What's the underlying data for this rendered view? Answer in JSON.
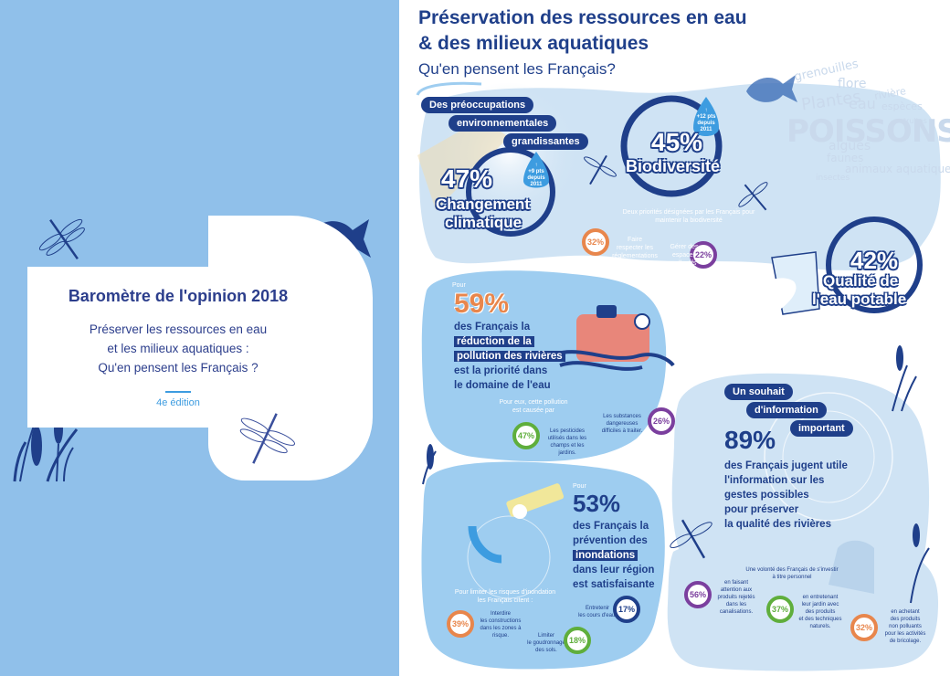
{
  "cover": {
    "title": "Baromètre de l'opinion 2018",
    "subtitle_lines": [
      "Préserver les ressources en eau",
      "et les milieux aquatiques :",
      "Qu'en pensent les Français ?"
    ],
    "edition": "4e édition"
  },
  "infographic": {
    "title_line1": "Préservation des ressources en eau",
    "title_line2": "& des milieux aquatiques",
    "subtitle": "Qu'en pensent les Français?",
    "preoccupations": {
      "pill_lines": [
        "Des préoccupations",
        "environnementales",
        "grandissantes"
      ],
      "climate_pct": "47%",
      "climate_label_lines": [
        "Changement",
        "climatique"
      ],
      "climate_drop": [
        "↑",
        "+9 pts",
        "depuis",
        "2011"
      ],
      "biodiv_pct": "45%",
      "biodiv_label": "Biodiversité",
      "biodiv_drop": [
        "↑",
        "+12 pts",
        "depuis",
        "2011"
      ],
      "water_pct": "42%",
      "water_label_lines": [
        "Qualité de",
        "l'eau potable"
      ]
    },
    "word_cloud": [
      "grenouilles",
      "flore",
      "rivière",
      "espèces",
      "eau",
      "Plantes",
      "truites",
      "POISSONS",
      "algues",
      "faunes",
      "animaux aquatiques",
      "insectes"
    ],
    "biodiv_priorities": {
      "caption_lines": [
        "Deux priorités désignées par les Français pour",
        "maintenir la biodiversité"
      ],
      "item1_pct": "32%",
      "item1_text": [
        "Faire",
        "respecter les",
        "réglementations"
      ],
      "item2_pct": "22%",
      "item2_text": [
        "Gérer des",
        "espaces collectifs",
        "sans pesticides"
      ]
    },
    "pollution": {
      "pour": "Pour",
      "pct": "59%",
      "lines": [
        "des Français la",
        "réduction de la",
        "pollution des rivières",
        "est la priorité dans",
        "le domaine de l'eau"
      ],
      "caption_lines": [
        "Pour eux, cette pollution",
        "est causée par"
      ],
      "item1_pct": "47%",
      "item1_text": [
        "Les pesticides",
        "utilisés dans les",
        "champs et les",
        "jardins."
      ],
      "item2_pct": "26%",
      "item2_text": [
        "Les substances",
        "dangereuses",
        "difficiles à traiter."
      ]
    },
    "information": {
      "pill_lines": [
        "Un souhait",
        "d'information",
        "important"
      ],
      "pct": "89%",
      "lines": [
        "des Français jugent utile",
        "l'information sur les",
        "gestes possibles",
        "pour préserver",
        "la qualité des rivières"
      ],
      "caption_lines": [
        "Une volonté des Français de s'investir",
        "à titre personnel"
      ],
      "item1_pct": "56%",
      "item1_text": [
        "en faisant",
        "attention aux",
        "produits rejetés",
        "dans les",
        "canalisations."
      ],
      "item2_pct": "37%",
      "item2_text": [
        "en entretenant",
        "leur jardin avec",
        "des produits",
        "et des techniques",
        "naturels."
      ],
      "item3_pct": "32%",
      "item3_text": [
        "en achetant",
        "des produits",
        "non polluants",
        "pour les activités",
        "de bricolage."
      ]
    },
    "floods": {
      "pour": "Pour",
      "pct": "53%",
      "lines": [
        "des Français la",
        "prévention des",
        "inondations",
        "dans leur région",
        "est satisfaisante"
      ],
      "caption_lines": [
        "Pour limiter les risques d'inondation",
        "les Français citent :"
      ],
      "item1_pct": "39%",
      "item1_text": [
        "Interdire",
        "les constructions",
        "dans les zones à",
        "risque."
      ],
      "item2_pct": "17%",
      "item2_text": [
        "Entretenir",
        "les cours d'eau."
      ],
      "item3_pct": "18%",
      "item3_text": [
        "Limiter",
        "le goudronnage",
        "des sols."
      ]
    }
  },
  "colors": {
    "cover_bg": "#90c0ea",
    "navy": "#1f3f8a",
    "cover_title": "#2c3e8c",
    "accent_blue": "#3d9ce0",
    "pale_blue": "#cfe3f4",
    "light_blue": "#9ecdf0",
    "orange": "#e8864c",
    "purple": "#7b3f9e",
    "green": "#5fae3c"
  },
  "icons": [
    "dragonfly-icon",
    "fish-icon",
    "reed-icon",
    "water-drop-icon",
    "glass-icon",
    "key-icon",
    "jerrycan-icon",
    "hand-icon"
  ]
}
